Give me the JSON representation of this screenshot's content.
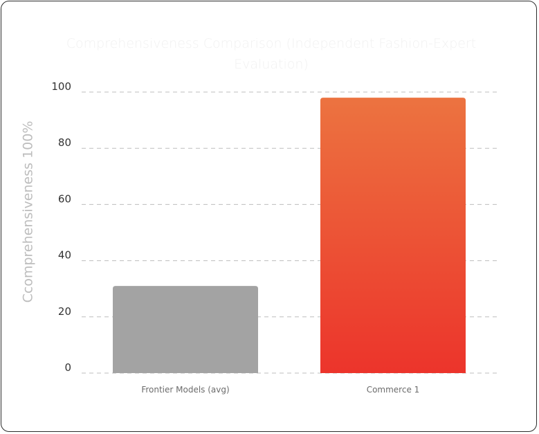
{
  "chart_data": {
    "type": "bar",
    "title": "Comprehensiveness Comparison (Independent Fashion-Expert Evaluation)",
    "xlabel": "",
    "ylabel": "Ccomprehensiveness 100%",
    "categories": [
      "Frontier Models (avg)",
      "Commerce 1"
    ],
    "values": [
      31,
      98
    ],
    "bar_colors": [
      {
        "top": "#a3a3a3",
        "bottom": "#a3a3a3"
      },
      {
        "top": "#ec7340",
        "bottom": "#ec342b"
      }
    ],
    "ylim": [
      0,
      100
    ],
    "yticks": [
      0,
      20,
      40,
      60,
      80,
      100
    ],
    "grid": true,
    "grid_style": "dashed",
    "legend": "none"
  }
}
